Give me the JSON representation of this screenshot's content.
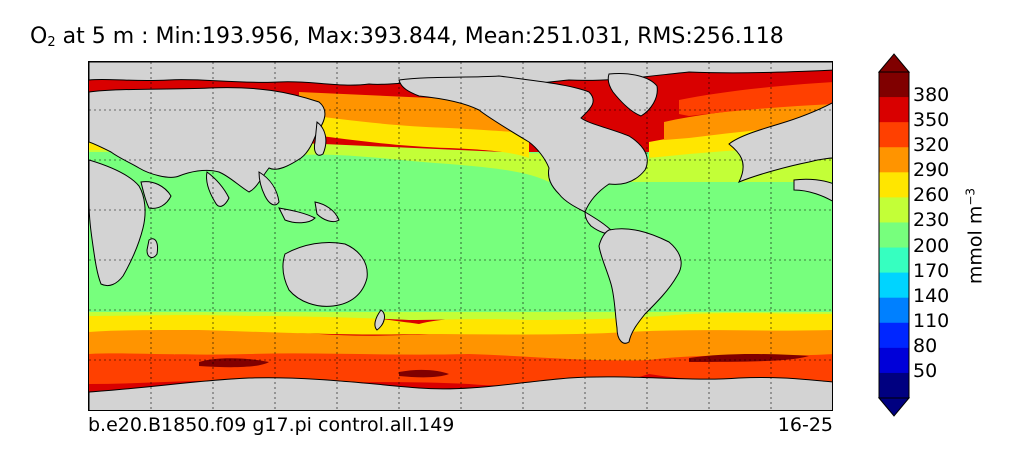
{
  "title": {
    "species": "O",
    "subscript": "2",
    "text": " at 5 m : Min:193.956, Max:393.844, Mean:251.031, RMS:256.118"
  },
  "footer": {
    "case_name": "b.e20.B1850.f09 g17.pi control.all.149",
    "years": "16-25"
  },
  "colorbar": {
    "label": "mmol m",
    "label_exponent": "−3",
    "ticks": [
      "380",
      "350",
      "320",
      "290",
      "260",
      "230",
      "200",
      "170",
      "140",
      "110",
      "80",
      "50"
    ],
    "colors": [
      "#800000",
      "#d90000",
      "#ff4000",
      "#ff9400",
      "#ffe600",
      "#c3ff37",
      "#77ff7d",
      "#36ffc0",
      "#00d4ff",
      "#0080ff",
      "#0026ff",
      "#0000d9",
      "#000080"
    ]
  },
  "map": {
    "projection": "cylindrical equidistant",
    "land_color": "#d3d3d3",
    "grid": "dashed lat/lon lines",
    "field": "O2 concentration at 5 m depth"
  }
}
